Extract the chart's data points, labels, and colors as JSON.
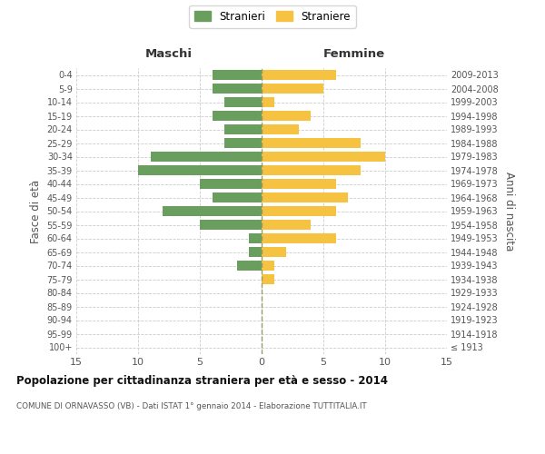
{
  "age_groups": [
    "100+",
    "95-99",
    "90-94",
    "85-89",
    "80-84",
    "75-79",
    "70-74",
    "65-69",
    "60-64",
    "55-59",
    "50-54",
    "45-49",
    "40-44",
    "35-39",
    "30-34",
    "25-29",
    "20-24",
    "15-19",
    "10-14",
    "5-9",
    "0-4"
  ],
  "birth_years": [
    "≤ 1913",
    "1914-1918",
    "1919-1923",
    "1924-1928",
    "1929-1933",
    "1934-1938",
    "1939-1943",
    "1944-1948",
    "1949-1953",
    "1954-1958",
    "1959-1963",
    "1964-1968",
    "1969-1973",
    "1974-1978",
    "1979-1983",
    "1984-1988",
    "1989-1993",
    "1994-1998",
    "1999-2003",
    "2004-2008",
    "2009-2013"
  ],
  "males": [
    0,
    0,
    0,
    0,
    0,
    0,
    2,
    1,
    1,
    5,
    8,
    4,
    5,
    10,
    9,
    3,
    3,
    4,
    3,
    4,
    4
  ],
  "females": [
    0,
    0,
    0,
    0,
    0,
    1,
    1,
    2,
    6,
    4,
    6,
    7,
    6,
    8,
    10,
    8,
    3,
    4,
    1,
    5,
    6
  ],
  "male_color": "#6a9e5f",
  "female_color": "#f5c242",
  "background_color": "#ffffff",
  "grid_color": "#cccccc",
  "title": "Popolazione per cittadinanza straniera per età e sesso - 2014",
  "subtitle": "COMUNE DI ORNAVASSO (VB) - Dati ISTAT 1° gennaio 2014 - Elaborazione TUTTITALIA.IT",
  "ylabel_left": "Fasce di età",
  "ylabel_right": "Anni di nascita",
  "xlim": 15,
  "legend_stranieri": "Stranieri",
  "legend_straniere": "Straniere",
  "maschi_label": "Maschi",
  "femmine_label": "Femmine"
}
